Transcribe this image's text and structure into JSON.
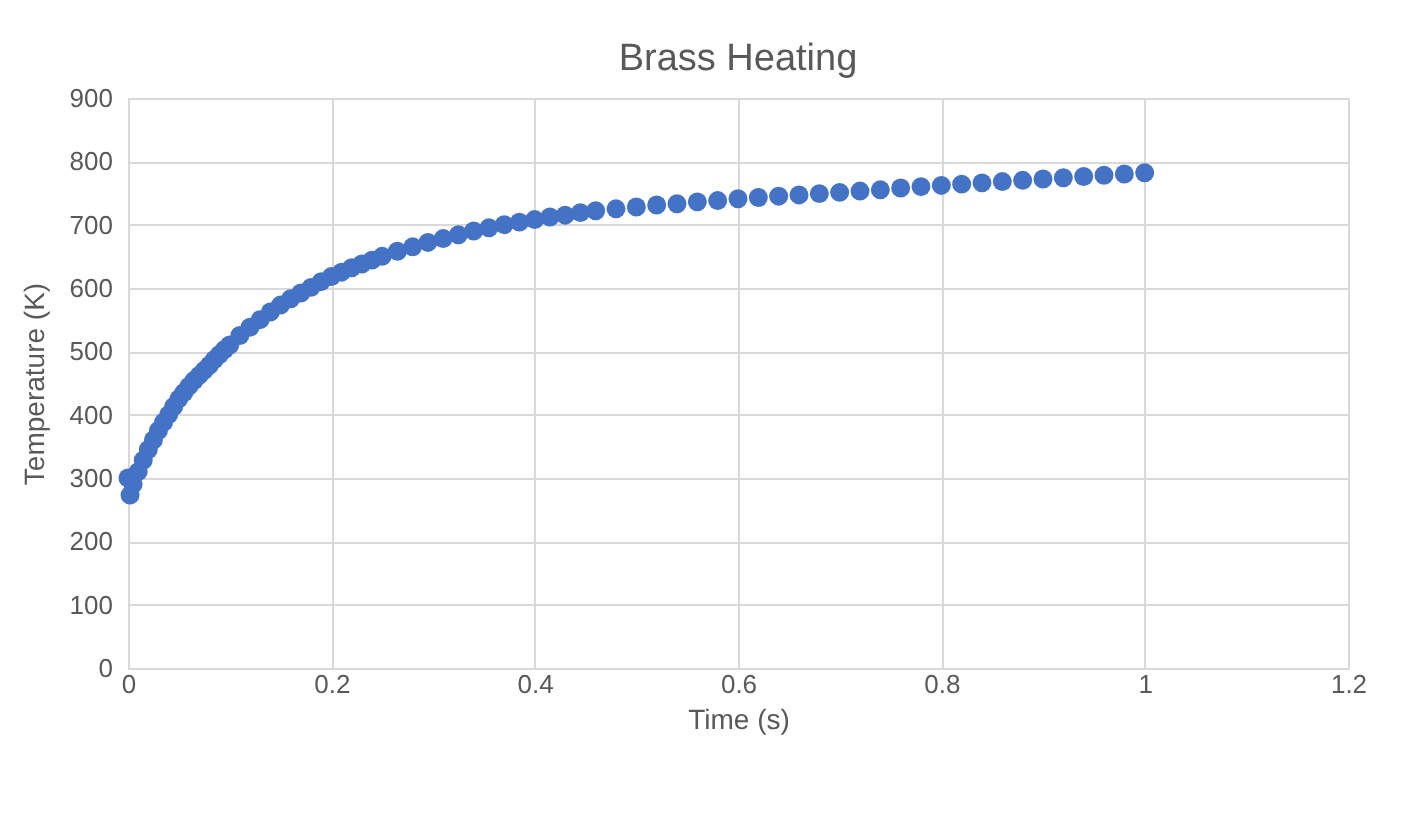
{
  "chart_data": {
    "type": "scatter",
    "title": "Brass Heating",
    "xlabel": "Time (s)",
    "ylabel": "Temperature (K)",
    "marker": "circle",
    "grid": true,
    "xlim": [
      0,
      1.2
    ],
    "xticks": [
      0,
      0.2,
      0.4,
      0.6,
      0.8,
      1,
      1.2
    ],
    "ylim": [
      0,
      900
    ],
    "yticks": [
      0,
      100,
      200,
      300,
      400,
      500,
      600,
      700,
      800,
      900
    ],
    "series": [
      {
        "color": "#4472c4",
        "x": [
          0,
          0.002,
          0.005,
          0.01,
          0.015,
          0.02,
          0.025,
          0.03,
          0.035,
          0.04,
          0.045,
          0.05,
          0.055,
          0.06,
          0.065,
          0.07,
          0.075,
          0.08,
          0.085,
          0.09,
          0.095,
          0.1,
          0.11,
          0.12,
          0.13,
          0.14,
          0.15,
          0.16,
          0.17,
          0.18,
          0.19,
          0.2,
          0.21,
          0.22,
          0.23,
          0.24,
          0.25,
          0.265,
          0.28,
          0.295,
          0.31,
          0.325,
          0.34,
          0.355,
          0.37,
          0.385,
          0.4,
          0.415,
          0.43,
          0.445,
          0.46,
          0.48,
          0.5,
          0.52,
          0.54,
          0.56,
          0.58,
          0.6,
          0.62,
          0.64,
          0.66,
          0.68,
          0.7,
          0.72,
          0.74,
          0.76,
          0.78,
          0.8,
          0.82,
          0.84,
          0.86,
          0.88,
          0.9,
          0.92,
          0.94,
          0.96,
          0.98,
          1
        ],
        "values": [
          300,
          273,
          290,
          310,
          328,
          345,
          360,
          375,
          388,
          400,
          413,
          425,
          435,
          445,
          454,
          462,
          470,
          478,
          487,
          495,
          503,
          510,
          525,
          538,
          550,
          562,
          573,
          583,
          592,
          601,
          610,
          618,
          625,
          632,
          638,
          644,
          650,
          658,
          665,
          672,
          678,
          684,
          690,
          695,
          700,
          704,
          708,
          712,
          715,
          719,
          722,
          725,
          728,
          731,
          733,
          736,
          738,
          741,
          743,
          745,
          747,
          749,
          751,
          753,
          755,
          758,
          760,
          762,
          764,
          766,
          768,
          770,
          772,
          774,
          776,
          778,
          780,
          782
        ]
      }
    ]
  }
}
